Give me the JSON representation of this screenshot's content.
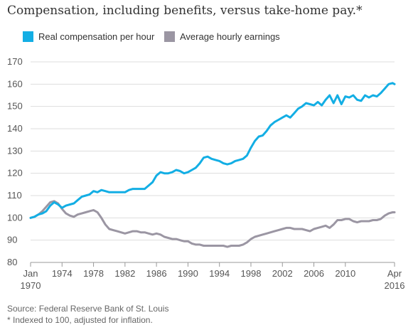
{
  "title": "Compensation, including benefits, versus take-home pay.*",
  "footer": {
    "source": "Source: Federal Reserve Bank of St. Louis",
    "note": "* Indexed to 100, adjusted for inflation."
  },
  "colors": {
    "compensation": "#13aee4",
    "earnings": "#9b96a3",
    "grid": "#dddddd",
    "baseline": "#999999"
  },
  "chart_data": {
    "type": "line",
    "title": "Compensation, including benefits, versus take-home pay.*",
    "xlabel": "",
    "ylabel": "",
    "xlim": [
      1970.0,
      2016.25
    ],
    "ylim": [
      80,
      170
    ],
    "y_ticks": [
      80,
      90,
      100,
      110,
      120,
      130,
      140,
      150,
      160,
      170
    ],
    "x_ticks": [
      {
        "value": 1970.0,
        "line1": "Jan",
        "line2": "1970"
      },
      {
        "value": 1974,
        "line1": "1974",
        "line2": ""
      },
      {
        "value": 1978,
        "line1": "1978",
        "line2": ""
      },
      {
        "value": 1982,
        "line1": "1982",
        "line2": ""
      },
      {
        "value": 1986,
        "line1": "1986",
        "line2": ""
      },
      {
        "value": 1990,
        "line1": "1990",
        "line2": ""
      },
      {
        "value": 1994,
        "line1": "1994",
        "line2": ""
      },
      {
        "value": 1998,
        "line1": "1998",
        "line2": ""
      },
      {
        "value": 2002,
        "line1": "2002",
        "line2": ""
      },
      {
        "value": 2006,
        "line1": "2006",
        "line2": ""
      },
      {
        "value": 2010,
        "line1": "2010",
        "line2": ""
      },
      {
        "value": 2016.25,
        "line1": "Apr",
        "line2": "2016"
      }
    ],
    "grid": true,
    "legend_position": "top-left",
    "series": [
      {
        "name": "Real compensation per hour",
        "color": "#13aee4",
        "points": [
          [
            1970.0,
            100
          ],
          [
            1970.5,
            100.5
          ],
          [
            1971,
            101.5
          ],
          [
            1971.5,
            102
          ],
          [
            1972,
            103
          ],
          [
            1972.5,
            105.5
          ],
          [
            1973,
            107
          ],
          [
            1973.5,
            106
          ],
          [
            1974,
            104.5
          ],
          [
            1974.5,
            105.5
          ],
          [
            1975,
            106
          ],
          [
            1975.5,
            106.5
          ],
          [
            1976,
            108
          ],
          [
            1976.5,
            109.5
          ],
          [
            1977,
            110
          ],
          [
            1977.5,
            110.5
          ],
          [
            1978,
            112
          ],
          [
            1978.5,
            111.5
          ],
          [
            1979,
            112.5
          ],
          [
            1979.5,
            112
          ],
          [
            1980,
            111.5
          ],
          [
            1981,
            111.5
          ],
          [
            1982,
            111.5
          ],
          [
            1982.5,
            112.5
          ],
          [
            1983,
            113
          ],
          [
            1984,
            113
          ],
          [
            1984.5,
            113
          ],
          [
            1985,
            114.5
          ],
          [
            1985.5,
            116
          ],
          [
            1986,
            119
          ],
          [
            1986.5,
            120.5
          ],
          [
            1987,
            120
          ],
          [
            1987.5,
            120
          ],
          [
            1988,
            120.5
          ],
          [
            1988.5,
            121.5
          ],
          [
            1989,
            121
          ],
          [
            1989.5,
            120
          ],
          [
            1990,
            120.5
          ],
          [
            1990.5,
            121.5
          ],
          [
            1991,
            122.5
          ],
          [
            1991.5,
            124.5
          ],
          [
            1992,
            127
          ],
          [
            1992.5,
            127.5
          ],
          [
            1993,
            126.5
          ],
          [
            1993.5,
            126
          ],
          [
            1994,
            125.5
          ],
          [
            1994.5,
            124.5
          ],
          [
            1995,
            124
          ],
          [
            1995.5,
            124.5
          ],
          [
            1996,
            125.5
          ],
          [
            1996.5,
            126
          ],
          [
            1997,
            126.5
          ],
          [
            1997.5,
            128
          ],
          [
            1998,
            131.5
          ],
          [
            1998.5,
            134.5
          ],
          [
            1999,
            136.5
          ],
          [
            1999.5,
            137
          ],
          [
            2000,
            139
          ],
          [
            2000.5,
            141.5
          ],
          [
            2001,
            143
          ],
          [
            2001.5,
            144
          ],
          [
            2002,
            145
          ],
          [
            2002.5,
            146
          ],
          [
            2003,
            145
          ],
          [
            2003.5,
            147
          ],
          [
            2004,
            149
          ],
          [
            2004.5,
            150
          ],
          [
            2005,
            151.5
          ],
          [
            2005.5,
            151
          ],
          [
            2006,
            150.5
          ],
          [
            2006.5,
            152
          ],
          [
            2007,
            150.5
          ],
          [
            2007.5,
            153
          ],
          [
            2008,
            155
          ],
          [
            2008.5,
            151.5
          ],
          [
            2009,
            155
          ],
          [
            2009.5,
            151
          ],
          [
            2010,
            154.5
          ],
          [
            2010.5,
            154
          ],
          [
            2011,
            155
          ],
          [
            2011.5,
            153
          ],
          [
            2012,
            152.5
          ],
          [
            2012.5,
            155
          ],
          [
            2013,
            154
          ],
          [
            2013.5,
            155
          ],
          [
            2014,
            154.5
          ],
          [
            2014.5,
            156
          ],
          [
            2015,
            158
          ],
          [
            2015.5,
            160
          ],
          [
            2016.0,
            160.5
          ],
          [
            2016.25,
            160
          ]
        ]
      },
      {
        "name": "Average hourly earnings",
        "color": "#9b96a3",
        "points": [
          [
            1970.0,
            100
          ],
          [
            1970.5,
            100.5
          ],
          [
            1971,
            101.5
          ],
          [
            1971.5,
            103
          ],
          [
            1972,
            105
          ],
          [
            1972.5,
            107
          ],
          [
            1973,
            107.5
          ],
          [
            1973.5,
            106.5
          ],
          [
            1974,
            104
          ],
          [
            1974.5,
            102
          ],
          [
            1975,
            101
          ],
          [
            1975.5,
            100.5
          ],
          [
            1976,
            101.5
          ],
          [
            1976.5,
            102
          ],
          [
            1977,
            102.5
          ],
          [
            1977.5,
            103
          ],
          [
            1978,
            103.5
          ],
          [
            1978.5,
            102.5
          ],
          [
            1979,
            100
          ],
          [
            1979.5,
            97
          ],
          [
            1980,
            95
          ],
          [
            1980.5,
            94.5
          ],
          [
            1981,
            94
          ],
          [
            1981.5,
            93.5
          ],
          [
            1982,
            93
          ],
          [
            1982.5,
            93.5
          ],
          [
            1983,
            94
          ],
          [
            1983.5,
            94
          ],
          [
            1984,
            93.5
          ],
          [
            1984.5,
            93.5
          ],
          [
            1985,
            93
          ],
          [
            1985.5,
            92.5
          ],
          [
            1986,
            93
          ],
          [
            1986.5,
            92.5
          ],
          [
            1987,
            91.5
          ],
          [
            1987.5,
            91
          ],
          [
            1988,
            90.5
          ],
          [
            1988.5,
            90.5
          ],
          [
            1989,
            90
          ],
          [
            1989.5,
            89.5
          ],
          [
            1990,
            89.5
          ],
          [
            1990.5,
            88.5
          ],
          [
            1991,
            88
          ],
          [
            1991.5,
            88
          ],
          [
            1992,
            87.5
          ],
          [
            1992.5,
            87.5
          ],
          [
            1993,
            87.5
          ],
          [
            1993.5,
            87.5
          ],
          [
            1994,
            87.5
          ],
          [
            1994.5,
            87.5
          ],
          [
            1995,
            87
          ],
          [
            1995.5,
            87.5
          ],
          [
            1996,
            87.5
          ],
          [
            1996.5,
            87.5
          ],
          [
            1997,
            88
          ],
          [
            1997.5,
            89
          ],
          [
            1998,
            90.5
          ],
          [
            1998.5,
            91.5
          ],
          [
            1999,
            92
          ],
          [
            1999.5,
            92.5
          ],
          [
            2000,
            93
          ],
          [
            2000.5,
            93.5
          ],
          [
            2001,
            94
          ],
          [
            2001.5,
            94.5
          ],
          [
            2002,
            95
          ],
          [
            2002.5,
            95.5
          ],
          [
            2003,
            95.5
          ],
          [
            2003.5,
            95
          ],
          [
            2004,
            95
          ],
          [
            2004.5,
            95
          ],
          [
            2005,
            94.5
          ],
          [
            2005.5,
            94
          ],
          [
            2006,
            95
          ],
          [
            2006.5,
            95.5
          ],
          [
            2007,
            96
          ],
          [
            2007.5,
            96.5
          ],
          [
            2008,
            95.5
          ],
          [
            2008.5,
            97
          ],
          [
            2009,
            99
          ],
          [
            2009.5,
            99
          ],
          [
            2010,
            99.5
          ],
          [
            2010.5,
            99.5
          ],
          [
            2011,
            98.5
          ],
          [
            2011.5,
            98
          ],
          [
            2012,
            98.5
          ],
          [
            2012.5,
            98.5
          ],
          [
            2013,
            98.5
          ],
          [
            2013.5,
            99
          ],
          [
            2014,
            99
          ],
          [
            2014.5,
            99.5
          ],
          [
            2015,
            101
          ],
          [
            2015.5,
            102
          ],
          [
            2016.0,
            102.5
          ],
          [
            2016.25,
            102.5
          ]
        ]
      }
    ]
  }
}
